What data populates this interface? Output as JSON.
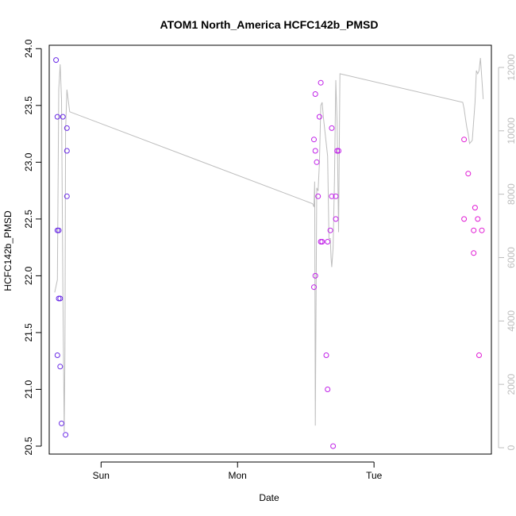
{
  "chart_data": {
    "type": "scatter",
    "title": "ATOM1 North_America HCFC142b_PMSD",
    "xlabel": "Date",
    "ylabel": "HCFC142b_PMSD",
    "x_ticks": [
      {
        "label": "Sun",
        "value": 0
      },
      {
        "label": "Mon",
        "value": 1
      },
      {
        "label": "Tue",
        "value": 2
      }
    ],
    "xlim": [
      -0.38,
      2.86
    ],
    "ylim": [
      20.43,
      24.03
    ],
    "y_ticks": [
      20.5,
      21.0,
      21.5,
      22.0,
      22.5,
      23.0,
      23.5,
      24.0
    ],
    "y_tick_labels": [
      "20.5",
      "21.0",
      "21.5",
      "22.0",
      "22.5",
      "23.0",
      "23.5",
      "24.0"
    ],
    "y2lim": [
      -200,
      12700
    ],
    "y2_ticks": [
      0,
      2000,
      4000,
      6000,
      8000,
      10000,
      12000
    ],
    "y2_tick_labels": [
      "0",
      "2000",
      "4000",
      "6000",
      "8000",
      "10000",
      "12000"
    ],
    "grid": false,
    "series": [
      {
        "type": "scatter",
        "marker": "open-circle",
        "points": [
          {
            "x": -0.33,
            "y": 23.9,
            "color": "#6a2be6"
          },
          {
            "x": -0.32,
            "y": 23.4,
            "color": "#6a2be6"
          },
          {
            "x": -0.32,
            "y": 22.4,
            "color": "#6a2be6"
          },
          {
            "x": -0.31,
            "y": 22.4,
            "color": "#6a2be6"
          },
          {
            "x": -0.32,
            "y": 21.3,
            "color": "#6a2be6"
          },
          {
            "x": -0.31,
            "y": 21.8,
            "color": "#6a2be6"
          },
          {
            "x": -0.3,
            "y": 21.8,
            "color": "#6a2be6"
          },
          {
            "x": -0.3,
            "y": 21.2,
            "color": "#6a2be6"
          },
          {
            "x": -0.29,
            "y": 20.7,
            "color": "#6a2be6"
          },
          {
            "x": -0.28,
            "y": 23.4,
            "color": "#6a2be6"
          },
          {
            "x": -0.26,
            "y": 20.6,
            "color": "#6a2be6"
          },
          {
            "x": -0.25,
            "y": 23.3,
            "color": "#6a2be6"
          },
          {
            "x": -0.25,
            "y": 23.1,
            "color": "#6a2be6"
          },
          {
            "x": -0.25,
            "y": 22.7,
            "color": "#6a2be6"
          },
          {
            "x": 1.56,
            "y": 21.9,
            "color": "#c020e8"
          },
          {
            "x": 1.56,
            "y": 23.2,
            "color": "#c020e8"
          },
          {
            "x": 1.57,
            "y": 23.6,
            "color": "#c020e8"
          },
          {
            "x": 1.57,
            "y": 23.1,
            "color": "#c020e8"
          },
          {
            "x": 1.57,
            "y": 22.0,
            "color": "#c020e8"
          },
          {
            "x": 1.58,
            "y": 23.0,
            "color": "#c020e8"
          },
          {
            "x": 1.59,
            "y": 22.7,
            "color": "#c020e8"
          },
          {
            "x": 1.6,
            "y": 23.4,
            "color": "#c020e8"
          },
          {
            "x": 1.61,
            "y": 23.7,
            "color": "#c020e8"
          },
          {
            "x": 1.61,
            "y": 22.3,
            "color": "#c020e8"
          },
          {
            "x": 1.62,
            "y": 22.3,
            "color": "#c020e8"
          },
          {
            "x": 1.65,
            "y": 21.3,
            "color": "#c020e8"
          },
          {
            "x": 1.66,
            "y": 21.0,
            "color": "#c020e8"
          },
          {
            "x": 1.66,
            "y": 22.3,
            "color": "#c020e8"
          },
          {
            "x": 1.68,
            "y": 22.4,
            "color": "#c020e8"
          },
          {
            "x": 1.69,
            "y": 22.7,
            "color": "#c020e8"
          },
          {
            "x": 1.69,
            "y": 23.3,
            "color": "#c020e8"
          },
          {
            "x": 1.7,
            "y": 20.5,
            "color": "#c020e8"
          },
          {
            "x": 1.72,
            "y": 22.5,
            "color": "#c020e8"
          },
          {
            "x": 1.72,
            "y": 22.7,
            "color": "#c020e8"
          },
          {
            "x": 1.73,
            "y": 23.1,
            "color": "#c020e8"
          },
          {
            "x": 1.74,
            "y": 23.1,
            "color": "#c020e8"
          },
          {
            "x": 2.66,
            "y": 23.2,
            "color": "#e01ad4"
          },
          {
            "x": 2.66,
            "y": 22.5,
            "color": "#e01ad4"
          },
          {
            "x": 2.69,
            "y": 22.9,
            "color": "#e01ad4"
          },
          {
            "x": 2.73,
            "y": 22.2,
            "color": "#e01ad4"
          },
          {
            "x": 2.73,
            "y": 22.4,
            "color": "#e01ad4"
          },
          {
            "x": 2.74,
            "y": 22.6,
            "color": "#e01ad4"
          },
          {
            "x": 2.76,
            "y": 22.5,
            "color": "#e01ad4"
          },
          {
            "x": 2.77,
            "y": 21.3,
            "color": "#e01ad4"
          },
          {
            "x": 2.79,
            "y": 22.4,
            "color": "#e01ad4"
          }
        ]
      },
      {
        "type": "line",
        "axis": "right",
        "color": "#bdbdbd",
        "x": [
          -0.34,
          -0.32,
          -0.31,
          -0.3,
          -0.29,
          -0.28,
          -0.27,
          -0.265,
          -0.26,
          -0.25,
          -0.23,
          1.55,
          1.56,
          1.565,
          1.57,
          1.58,
          1.59,
          1.6,
          1.61,
          1.62,
          1.63,
          1.66,
          1.67,
          1.68,
          1.685,
          1.69,
          1.7,
          1.71,
          1.72,
          1.73,
          1.74,
          1.75,
          2.65,
          2.66,
          2.67,
          2.68,
          2.69,
          2.7,
          2.72,
          2.74,
          2.75,
          2.76,
          2.77,
          2.78,
          2.8
        ],
        "y": [
          4900,
          5300,
          11300,
          12100,
          11000,
          5000,
          500,
          3000,
          10000,
          11300,
          10600,
          7700,
          7600,
          8400,
          700,
          8200,
          8100,
          9000,
          10800,
          10900,
          10400,
          9200,
          6600,
          6600,
          6000,
          5700,
          6300,
          8400,
          11600,
          10200,
          6800,
          11800,
          10900,
          10700,
          10400,
          10100,
          9900,
          9600,
          9700,
          10900,
          11900,
          11800,
          11900,
          12300,
          11000
        ]
      }
    ]
  }
}
